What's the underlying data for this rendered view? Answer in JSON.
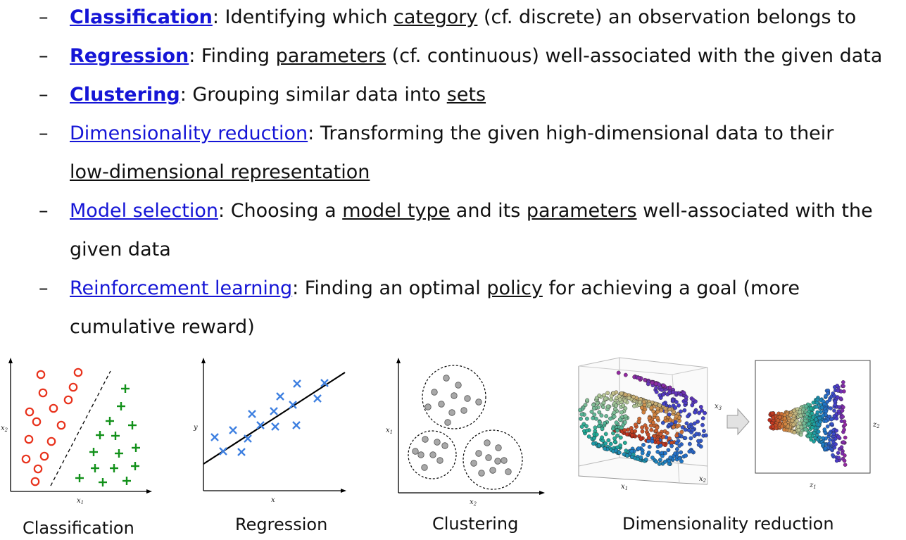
{
  "bullets": [
    {
      "dash": "–",
      "term": "Classification",
      "bold": true,
      "text": [
        ": Identifying which ",
        {
          "u": "category"
        },
        " (cf. discrete) an observation belongs to"
      ]
    },
    {
      "dash": "–",
      "term": "Regression",
      "bold": true,
      "text": [
        ": Finding ",
        {
          "u": "parameters"
        },
        " (cf. continuous) well-associated with the given data"
      ]
    },
    {
      "dash": "–",
      "term": "Clustering",
      "bold": true,
      "text": [
        ": Grouping similar data into ",
        {
          "u": "sets"
        }
      ]
    },
    {
      "dash": "–",
      "term": "Dimensionality reduction",
      "bold": false,
      "text": [
        ": Transforming the given high-dimensional data to their"
      ],
      "line2": [
        {
          "u": "low-dimensional representation"
        }
      ]
    },
    {
      "dash": "–",
      "term": "Model selection",
      "bold": false,
      "text": [
        ": Choosing a ",
        {
          "u": "model type"
        },
        " and its ",
        {
          "u": "parameters"
        },
        " well-associated with the"
      ],
      "line2": [
        "given data"
      ]
    },
    {
      "dash": "–",
      "term": "Reinforcement learning",
      "bold": false,
      "text": [
        ": Finding an optimal ",
        {
          "u": "policy"
        },
        " for achieving a goal (more"
      ],
      "line2": [
        "cumulative reward)"
      ]
    }
  ],
  "figures": {
    "classification": {
      "caption": "Classification",
      "xlabel": "x",
      "xsub": "1",
      "ylabel": "x",
      "ysub": "2"
    },
    "regression": {
      "caption": "Regression",
      "xlabel": "x",
      "ylabel": "y"
    },
    "clustering": {
      "caption": "Clustering",
      "xlabel": "x",
      "xsub": "2",
      "ylabel": "x",
      "ysub": "1"
    },
    "dimred": {
      "caption": "Dimensionality reduction",
      "x1": "x",
      "x1sub": "1",
      "x2": "x",
      "x2sub": "2",
      "x3": "x",
      "x3sub": "3",
      "z1": "z",
      "z1sub": "1",
      "z2": "z",
      "z2sub": "2"
    }
  },
  "colors": {
    "term": "#1515d6",
    "circle": "#e8321c",
    "plus": "#12911a",
    "cross": "#3d7fe0",
    "dot": "#a8a8a8"
  }
}
